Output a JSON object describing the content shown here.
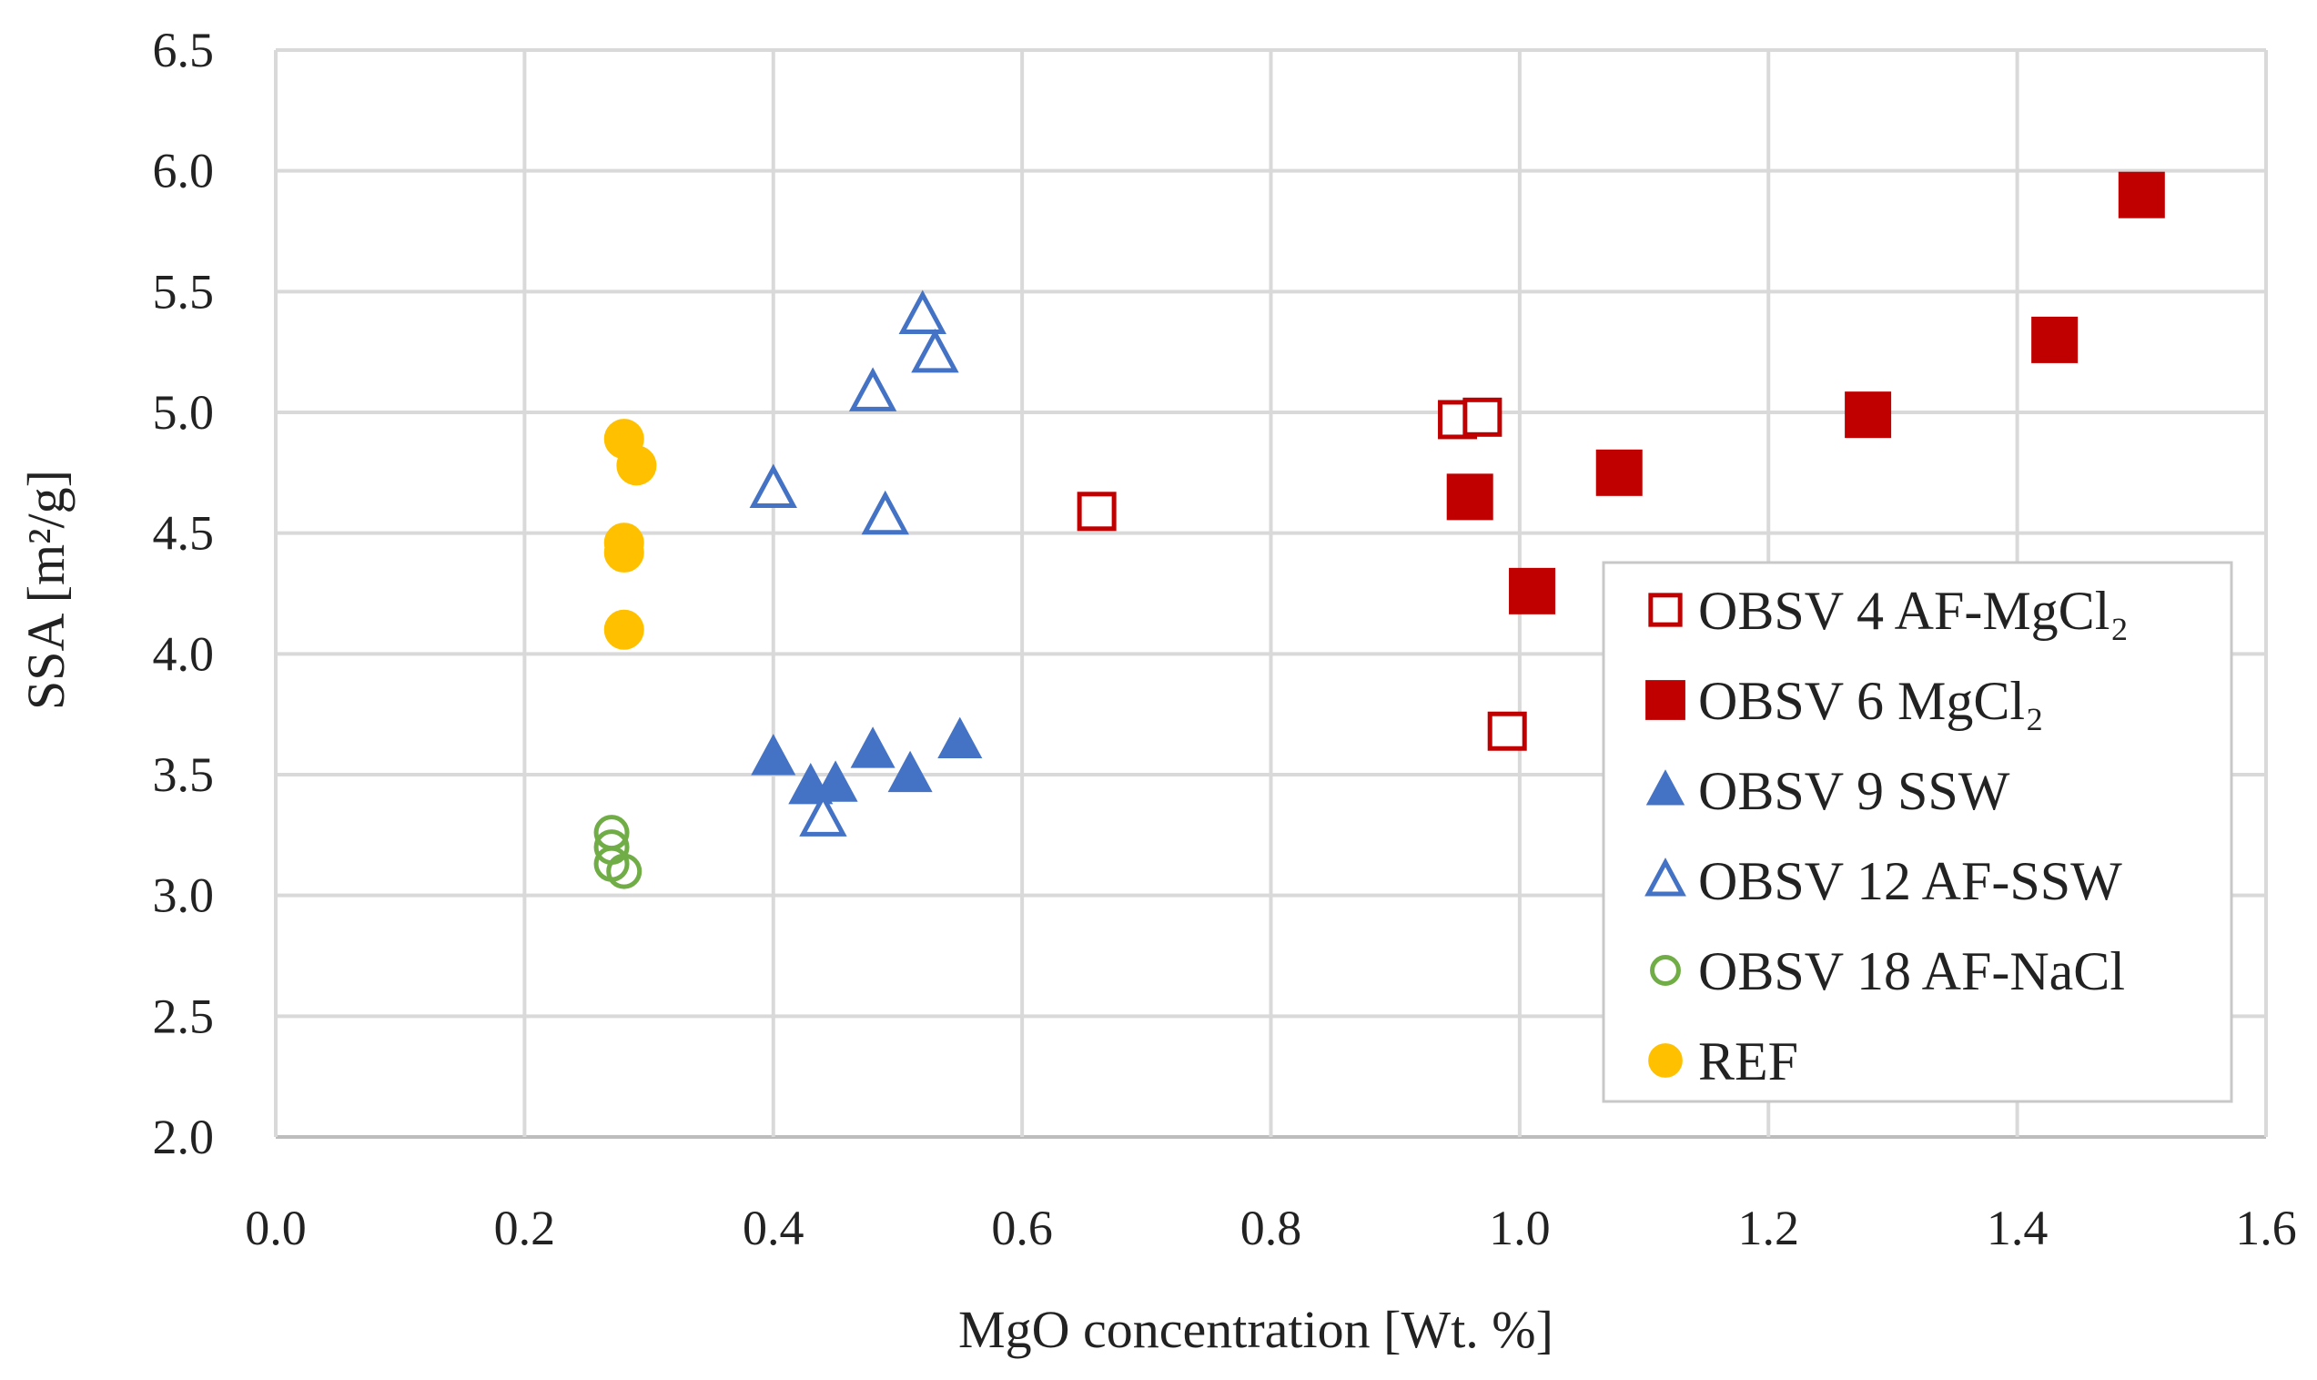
{
  "chart_data": {
    "type": "scatter",
    "title": "",
    "xlabel": "MgO concentration [Wt. %]",
    "ylabel": "SSA [m²/g]",
    "xlim": [
      0.0,
      1.6
    ],
    "ylim": [
      2.0,
      6.5
    ],
    "x_ticks": [
      "0.0",
      "0.2",
      "0.4",
      "0.6",
      "0.8",
      "1.0",
      "1.2",
      "1.4",
      "1.6"
    ],
    "y_ticks": [
      "2.0",
      "2.5",
      "3.0",
      "3.5",
      "4.0",
      "4.5",
      "5.0",
      "5.5",
      "6.0",
      "6.5"
    ],
    "grid": true,
    "legend_position": "right",
    "series": [
      {
        "name": "OBSV 4 AF-MgCl₂",
        "marker": "square-open",
        "color": "#C00000",
        "points": [
          [
            0.66,
            4.59
          ],
          [
            0.95,
            4.97
          ],
          [
            0.97,
            4.98
          ],
          [
            0.99,
            3.68
          ]
        ]
      },
      {
        "name": "OBSV 6 MgCl₂",
        "marker": "square-filled",
        "color": "#C00000",
        "points": [
          [
            0.96,
            4.65
          ],
          [
            1.01,
            4.26
          ],
          [
            1.08,
            4.75
          ],
          [
            1.28,
            4.99
          ],
          [
            1.43,
            5.3
          ],
          [
            1.5,
            5.9
          ]
        ]
      },
      {
        "name": "OBSV 9 SSW",
        "marker": "triangle-filled",
        "color": "#4472C4",
        "points": [
          [
            0.4,
            3.57
          ],
          [
            0.43,
            3.45
          ],
          [
            0.45,
            3.46
          ],
          [
            0.48,
            3.6
          ],
          [
            0.51,
            3.5
          ],
          [
            0.55,
            3.64
          ]
        ]
      },
      {
        "name": "OBSV 12 AF-SSW",
        "marker": "triangle-open",
        "color": "#4472C4",
        "points": [
          [
            0.4,
            4.68
          ],
          [
            0.44,
            3.32
          ],
          [
            0.48,
            5.08
          ],
          [
            0.49,
            4.57
          ],
          [
            0.52,
            5.4
          ],
          [
            0.53,
            5.24
          ]
        ]
      },
      {
        "name": "OBSV 18 AF-NaCl",
        "marker": "circle-open",
        "color": "#70AD47",
        "points": [
          [
            0.27,
            3.26
          ],
          [
            0.27,
            3.2
          ],
          [
            0.27,
            3.13
          ],
          [
            0.28,
            3.1
          ]
        ]
      },
      {
        "name": "REF",
        "marker": "circle-filled",
        "color": "#FFC000",
        "points": [
          [
            0.28,
            4.89
          ],
          [
            0.29,
            4.78
          ],
          [
            0.28,
            4.46
          ],
          [
            0.28,
            4.42
          ],
          [
            0.28,
            4.1
          ]
        ]
      }
    ]
  }
}
